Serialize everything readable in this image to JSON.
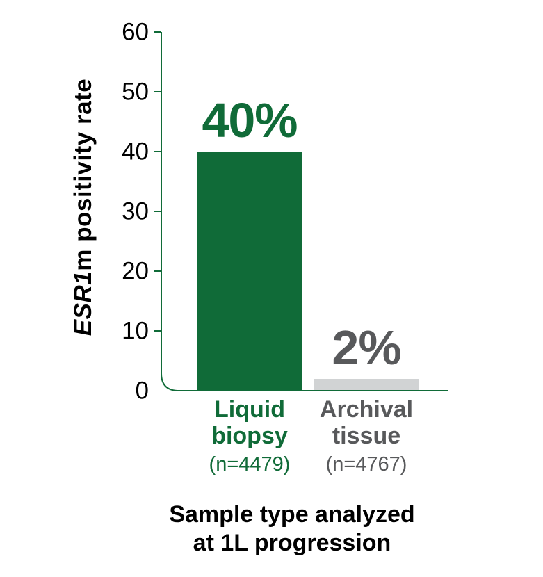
{
  "chart_data": {
    "type": "bar",
    "title": "",
    "ylabel_italic": "ESR1",
    "ylabel_rest": "m positivity rate",
    "xlabel_lines": [
      "Sample type analyzed",
      "at 1L progression"
    ],
    "ylim": [
      0,
      60
    ],
    "yticks": [
      60,
      50,
      40,
      30,
      20,
      10,
      0
    ],
    "tick_interval": 10,
    "grid": false,
    "legend": false,
    "categories": [
      "Liquid biopsy",
      "Archival tissue"
    ],
    "values": [
      40,
      2
    ],
    "bars": [
      {
        "category_lines": [
          "Liquid",
          "biopsy"
        ],
        "n_label": "(n=4479)",
        "value": 40,
        "value_label": "40%",
        "bar_color": "#106b38",
        "text_color": "#106b38"
      },
      {
        "category_lines": [
          "Archival",
          "tissue"
        ],
        "n_label": "(n=4767)",
        "value": 2,
        "value_label": "2%",
        "bar_color": "#d1d3d4",
        "text_color": "#58595b"
      }
    ]
  },
  "colors": {
    "background": "#ffffff",
    "axis": "#106b38",
    "tick_text": "#000000",
    "title_text": "#000000"
  }
}
